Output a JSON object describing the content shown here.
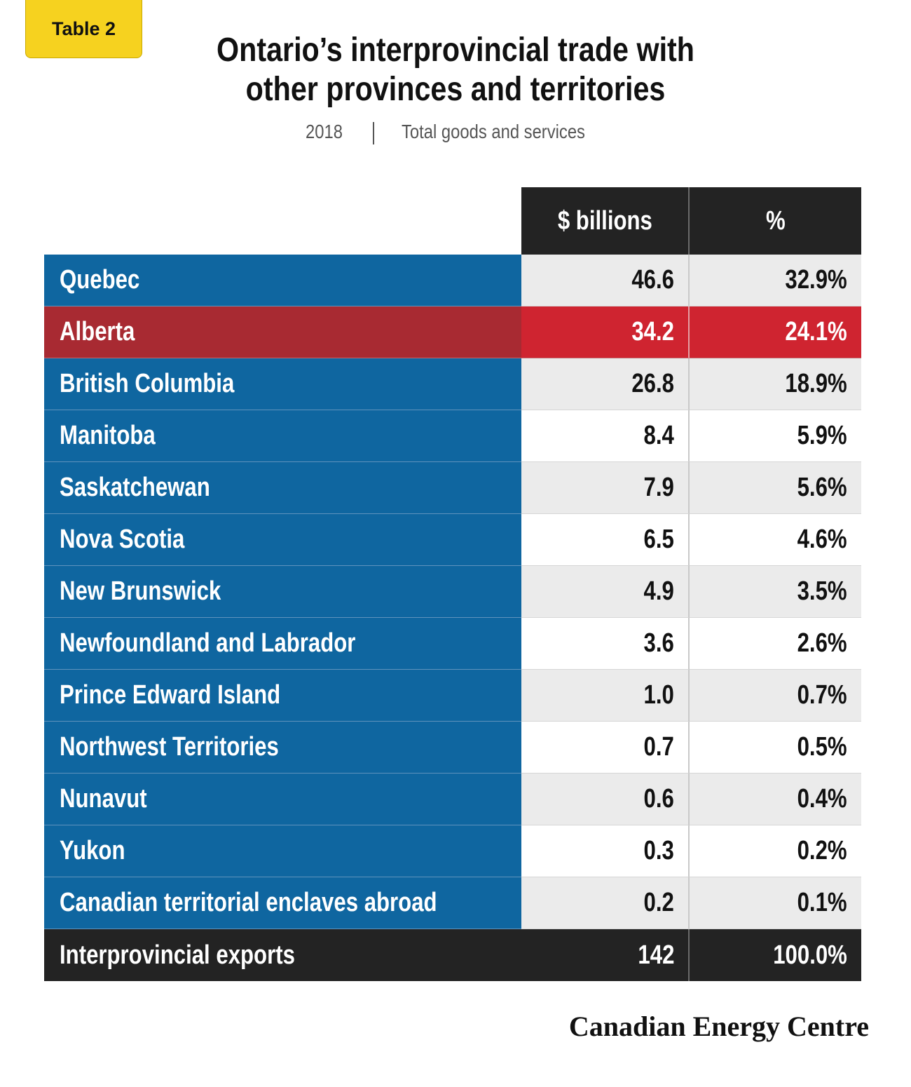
{
  "badge": "Table 2",
  "title_line1": "Ontario’s interprovincial trade with",
  "title_line2": "other provinces and territories",
  "subtitle": {
    "year": "2018",
    "desc": "Total goods and services"
  },
  "chart_data": {
    "type": "table",
    "columns": [
      "$ billions",
      "%"
    ],
    "rows": [
      {
        "name": "Quebec",
        "billions": "46.6",
        "pct": "32.9%"
      },
      {
        "name": "Alberta",
        "billions": "34.2",
        "pct": "24.1%",
        "highlight": true
      },
      {
        "name": "British Columbia",
        "billions": "26.8",
        "pct": "18.9%"
      },
      {
        "name": "Manitoba",
        "billions": "8.4",
        "pct": "5.9%"
      },
      {
        "name": "Saskatchewan",
        "billions": "7.9",
        "pct": "5.6%"
      },
      {
        "name": "Nova Scotia",
        "billions": "6.5",
        "pct": "4.6%"
      },
      {
        "name": "New Brunswick",
        "billions": "4.9",
        "pct": "3.5%"
      },
      {
        "name": "Newfoundland and Labrador",
        "billions": "3.6",
        "pct": "2.6%"
      },
      {
        "name": "Prince Edward Island",
        "billions": "1.0",
        "pct": "0.7%"
      },
      {
        "name": "Northwest Territories",
        "billions": "0.7",
        "pct": "0.5%"
      },
      {
        "name": "Nunavut",
        "billions": "0.6",
        "pct": "0.4%"
      },
      {
        "name": "Yukon",
        "billions": "0.3",
        "pct": "0.2%"
      },
      {
        "name": "Canadian territorial enclaves abroad",
        "billions": "0.2",
        "pct": "0.1%"
      }
    ],
    "total": {
      "name": "Interprovincial exports",
      "billions": "142",
      "pct": "100.0%"
    }
  },
  "colors": {
    "province_blue": "#0f66a0",
    "highlight_red": "#cf2430",
    "header_dark": "#232323",
    "badge_yellow": "#f6d21f"
  },
  "logo_text": "Canadian Energy Centre"
}
